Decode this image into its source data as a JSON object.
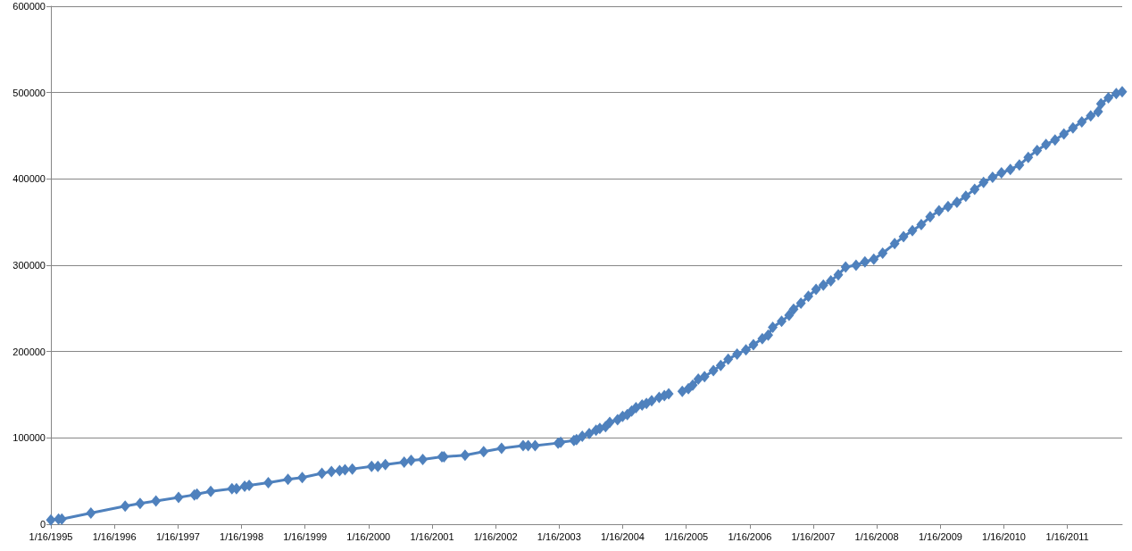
{
  "chart_data": {
    "type": "line",
    "color": "#4f81bd",
    "marker": "diamond",
    "line_style": "solid",
    "grid": "y",
    "x": [
      "1995-01-16",
      "1995-03-01",
      "1995-03-20",
      "1995-09-03",
      "1996-03-18",
      "1996-06-12",
      "1996-09-11",
      "1997-01-19",
      "1997-04-20",
      "1997-05-05",
      "1997-07-23",
      "1997-11-22",
      "1997-12-18",
      "1998-02-03",
      "1998-03-01",
      "1998-06-19",
      "1998-10-10",
      "1998-12-31",
      "1999-04-23",
      "1999-06-17",
      "1999-08-03",
      "1999-09-03",
      "1999-10-15",
      "2000-02-03",
      "2000-03-10",
      "2000-04-22",
      "2000-08-08",
      "2000-09-17",
      "2000-11-23",
      "2001-03-13",
      "2001-03-25",
      "2001-07-24",
      "2001-11-08",
      "2002-02-19",
      "2002-06-23",
      "2002-07-22",
      "2002-08-31",
      "2003-01-10",
      "2003-01-25",
      "2003-04-11",
      "2003-04-26",
      "2003-05-29",
      "2003-07-08",
      "2003-08-16",
      "2003-09-07",
      "2003-10-10",
      "2003-11-03",
      "2003-12-18",
      "2004-01-16",
      "2004-02-12",
      "2004-03-08",
      "2004-04-02",
      "2004-05-07",
      "2004-06-01",
      "2004-07-01",
      "2004-08-13",
      "2004-09-12",
      "2004-10-07",
      "2004-11-15",
      "2004-12-24",
      "2005-01-28",
      "2005-02-22",
      "2005-03-26",
      "2005-05-01",
      "2005-06-21",
      "2005-08-02",
      "2005-09-14",
      "2005-11-04",
      "2005-12-25",
      "2006-02-06",
      "2006-03-29",
      "2006-05-02",
      "2006-05-28",
      "2006-07-18",
      "2006-08-30",
      "2006-09-25",
      "2006-11-06",
      "2006-12-19",
      "2007-02-01",
      "2007-03-15",
      "2007-04-27",
      "2007-06-09",
      "2007-07-21",
      "2007-09-19",
      "2007-11-09",
      "2007-12-30",
      "2008-02-19",
      "2008-04-28",
      "2008-06-18",
      "2008-08-08",
      "2008-09-28",
      "2008-11-18",
      "2009-01-08",
      "2009-03-01",
      "2009-04-21",
      "2009-06-11",
      "2009-08-01",
      "2009-09-21",
      "2009-11-12",
      "2010-01-02",
      "2010-02-22",
      "2010-04-15",
      "2010-06-05",
      "2010-07-26",
      "2010-09-15",
      "2010-11-06",
      "2010-12-27",
      "2011-02-17",
      "2011-04-09",
      "2011-05-30",
      "2011-07-12",
      "2011-07-28",
      "2011-09-09",
      "2011-10-24",
      "2011-11-27"
    ],
    "values": [
      5000,
      6000,
      6000,
      13000,
      21000,
      24000,
      27000,
      31000,
      34000,
      35000,
      38000,
      41000,
      41000,
      44000,
      45000,
      48000,
      52000,
      54000,
      59000,
      61000,
      62000,
      63000,
      64000,
      67000,
      67000,
      69000,
      72000,
      74000,
      75000,
      78000,
      78000,
      80000,
      84000,
      88000,
      91000,
      91000,
      91000,
      94000,
      95000,
      97000,
      98000,
      102000,
      105000,
      109000,
      111000,
      113000,
      118000,
      121000,
      125000,
      127000,
      131000,
      135000,
      138000,
      140000,
      143000,
      147000,
      149000,
      151000,
      null,
      154000,
      157000,
      161000,
      168000,
      171000,
      178000,
      184000,
      191000,
      197000,
      202000,
      208000,
      215000,
      219000,
      228000,
      235000,
      242000,
      249000,
      256000,
      264000,
      272000,
      277000,
      282000,
      289000,
      298000,
      300000,
      304000,
      307000,
      314000,
      325000,
      333000,
      340000,
      347000,
      356000,
      363000,
      368000,
      373000,
      380000,
      388000,
      396000,
      402000,
      407000,
      411000,
      416000,
      425000,
      433000,
      440000,
      445000,
      452000,
      459000,
      466000,
      473000,
      478000,
      487000,
      494000,
      499000,
      501000
    ],
    "xlim": [
      "1995-01-16",
      "2011-11-27"
    ],
    "xticks": [
      {
        "value": "1995-01-16",
        "label": "1/16/1995"
      },
      {
        "value": "1996-01-16",
        "label": "1/16/1996"
      },
      {
        "value": "1997-01-16",
        "label": "1/16/1997"
      },
      {
        "value": "1998-01-16",
        "label": "1/16/1998"
      },
      {
        "value": "1999-01-16",
        "label": "1/16/1999"
      },
      {
        "value": "2000-01-16",
        "label": "1/16/2000"
      },
      {
        "value": "2001-01-16",
        "label": "1/16/2001"
      },
      {
        "value": "2002-01-16",
        "label": "1/16/2002"
      },
      {
        "value": "2003-01-16",
        "label": "1/16/2003"
      },
      {
        "value": "2004-01-16",
        "label": "1/16/2004"
      },
      {
        "value": "2005-01-16",
        "label": "1/16/2005"
      },
      {
        "value": "2006-01-16",
        "label": "1/16/2006"
      },
      {
        "value": "2007-01-16",
        "label": "1/16/2007"
      },
      {
        "value": "2008-01-16",
        "label": "1/16/2008"
      },
      {
        "value": "2009-01-16",
        "label": "1/16/2009"
      },
      {
        "value": "2010-01-16",
        "label": "1/16/2010"
      },
      {
        "value": "2011-01-16",
        "label": "1/16/2011"
      }
    ],
    "ylim": [
      0,
      600000
    ],
    "yticks": [
      0,
      100000,
      200000,
      300000,
      400000,
      500000,
      600000
    ]
  }
}
